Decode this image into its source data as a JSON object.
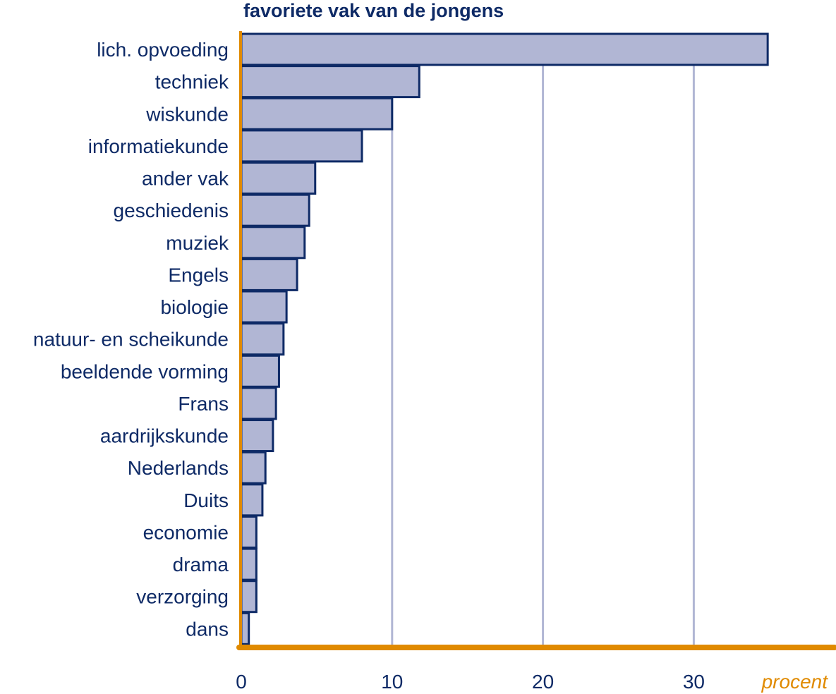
{
  "chart_data": {
    "type": "bar",
    "orientation": "horizontal",
    "title": "favoriete vak van de jongens",
    "xlabel": "procent",
    "categories": [
      "lich. opvoeding",
      "techniek",
      "wiskunde",
      "informatiekunde",
      "ander vak",
      "geschiedenis",
      "muziek",
      "Engels",
      "biologie",
      "natuur- en scheikunde",
      "beeldende vorming",
      "Frans",
      "aardrijkskunde",
      "Nederlands",
      "Duits",
      "economie",
      "drama",
      "verzorging",
      "dans"
    ],
    "values": [
      34.9,
      11.8,
      10.0,
      8.0,
      4.9,
      4.5,
      4.2,
      3.7,
      3.0,
      2.8,
      2.5,
      2.3,
      2.1,
      1.6,
      1.4,
      1.0,
      1.0,
      1.0,
      0.5
    ],
    "xlim": [
      0,
      38
    ],
    "xticks": [
      0,
      10,
      20,
      30
    ],
    "grid": true,
    "colors": {
      "bar_fill": "#b1b6d4",
      "bar_stroke": "#0e2a66",
      "grid": "#b1b6d4",
      "axis": "#e08a00",
      "text": "#0e2a66",
      "unit": "#e08a00"
    }
  }
}
